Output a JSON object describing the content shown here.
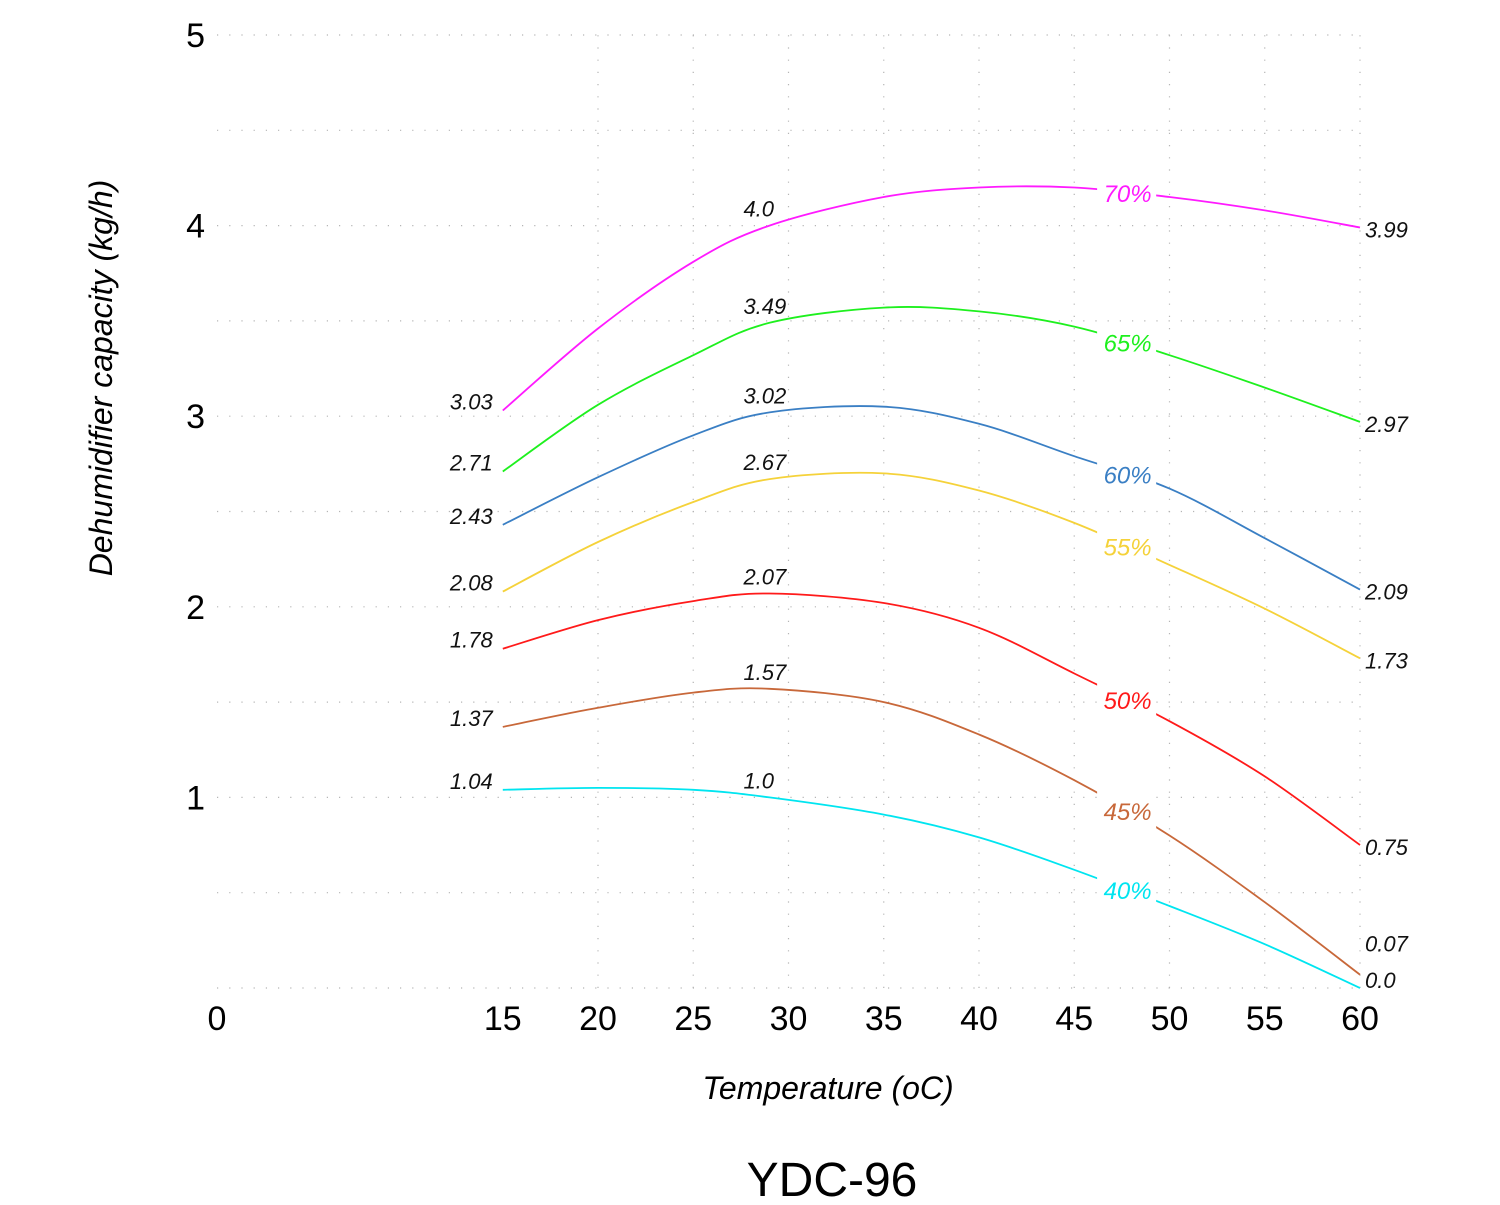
{
  "chart_data": {
    "type": "line",
    "title": "YDC-96",
    "xlabel": "Temperature (oC)",
    "ylabel": "Dehumidifier capacity (kg/h)",
    "xlim": [
      0,
      60
    ],
    "ylim": [
      0,
      5
    ],
    "x_ticks": [
      "0",
      "15",
      "20",
      "25",
      "30",
      "35",
      "40",
      "45",
      "50",
      "55",
      "60"
    ],
    "y_ticks": [
      "1",
      "2",
      "3",
      "4",
      "5"
    ],
    "grid": true,
    "legend": "none (series labelled inline on curves)",
    "series": [
      {
        "name": "40%",
        "color": "#00e5f0",
        "x": [
          15,
          20,
          25,
          29,
          35,
          40,
          45,
          50,
          55,
          60
        ],
        "y": [
          1.04,
          1.05,
          1.04,
          1.0,
          0.91,
          0.79,
          0.62,
          0.43,
          0.23,
          0.0
        ],
        "labels": {
          "start": "1.04",
          "peak": "1.0",
          "end": "0.0"
        }
      },
      {
        "name": "45%",
        "color": "#c8683a",
        "x": [
          15,
          20,
          25,
          29,
          35,
          40,
          45,
          50,
          55,
          60
        ],
        "y": [
          1.37,
          1.47,
          1.55,
          1.57,
          1.5,
          1.33,
          1.09,
          0.8,
          0.45,
          0.07
        ],
        "labels": {
          "start": "1.37",
          "peak": "1.57",
          "end": "0.07"
        }
      },
      {
        "name": "50%",
        "color": "#ff1a1a",
        "x": [
          15,
          20,
          25,
          29,
          35,
          40,
          45,
          50,
          55,
          60
        ],
        "y": [
          1.78,
          1.93,
          2.03,
          2.07,
          2.02,
          1.89,
          1.65,
          1.4,
          1.11,
          0.75
        ],
        "labels": {
          "start": "1.78",
          "peak": "2.07",
          "end": "0.75"
        }
      },
      {
        "name": "55%",
        "color": "#f5d23a",
        "x": [
          15,
          20,
          25,
          29,
          35,
          40,
          45,
          50,
          55,
          60
        ],
        "y": [
          2.08,
          2.34,
          2.55,
          2.67,
          2.7,
          2.61,
          2.44,
          2.22,
          1.99,
          1.73
        ],
        "labels": {
          "start": "2.08",
          "peak": "2.67",
          "end": "1.73"
        }
      },
      {
        "name": "60%",
        "color": "#3a7fc4",
        "x": [
          15,
          20,
          25,
          29,
          35,
          40,
          45,
          50,
          55,
          60
        ],
        "y": [
          2.43,
          2.68,
          2.9,
          3.02,
          3.05,
          2.96,
          2.79,
          2.62,
          2.36,
          2.09
        ],
        "labels": {
          "start": "2.43",
          "peak": "3.02",
          "end": "2.09"
        }
      },
      {
        "name": "65%",
        "color": "#1ef01e",
        "x": [
          15,
          20,
          25,
          29,
          35,
          40,
          45,
          50,
          55,
          60
        ],
        "y": [
          2.71,
          3.06,
          3.32,
          3.49,
          3.57,
          3.55,
          3.47,
          3.32,
          3.15,
          2.97
        ],
        "labels": {
          "start": "2.71",
          "peak": "3.49",
          "end": "2.97"
        }
      },
      {
        "name": "70%",
        "color": "#ff1aff",
        "x": [
          15,
          20,
          25,
          29,
          35,
          40,
          45,
          50,
          55,
          60
        ],
        "y": [
          3.03,
          3.46,
          3.81,
          4.0,
          4.15,
          4.2,
          4.2,
          4.15,
          4.08,
          3.99
        ],
        "labels": {
          "start": "3.03",
          "peak": "4.0",
          "end": "3.99"
        }
      }
    ]
  }
}
